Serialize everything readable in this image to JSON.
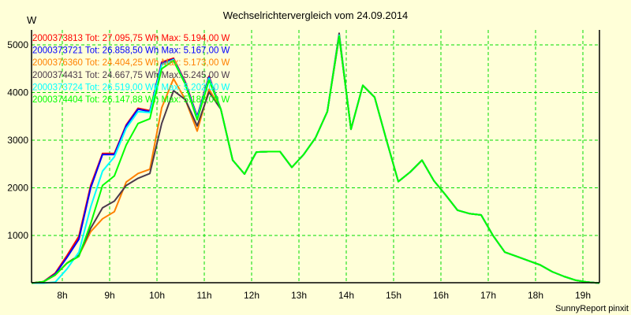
{
  "chart_data": {
    "type": "line",
    "title": "Wechselrichtervergleich vom 24.09.2014",
    "ylabel": "W",
    "xlabel": "",
    "footer": "SunnyReport pinxit",
    "xlim": [
      7.35,
      19.35
    ],
    "ylim": [
      0,
      5250
    ],
    "x_start": 7.35,
    "x_step": 0.25,
    "grid": true,
    "legend_position": "top-left",
    "x_ticks": [
      8,
      9,
      10,
      11,
      12,
      13,
      14,
      15,
      16,
      17,
      18,
      19
    ],
    "x_tick_labels": [
      "8h",
      "9h",
      "10h",
      "11h",
      "12h",
      "13h",
      "14h",
      "15h",
      "16h",
      "17h",
      "18h",
      "19h"
    ],
    "y_ticks": [
      1000,
      2000,
      3000,
      4000,
      5000
    ],
    "y_tick_labels": [
      "1000",
      "2000",
      "3000",
      "4000",
      "5000"
    ],
    "common_tail": [
      3650,
      2580,
      2290,
      2750,
      2760,
      2760,
      2430,
      2700,
      3050,
      3600,
      5200,
      3230,
      4150,
      3900,
      3000,
      2130,
      2330,
      2580,
      2150,
      1850,
      1530,
      1460,
      1430,
      1000,
      650,
      560,
      470,
      380,
      240,
      140,
      60,
      20,
      0
    ],
    "series": [
      {
        "name": "2000373813",
        "legend": "2000373813 Tot: 27.095,75 Wh Max: 5.194,00 W",
        "color": "#ff0000",
        "max": 5194,
        "head": [
          0,
          30,
          210,
          580,
          980,
          2050,
          2720,
          2720,
          3320,
          3670,
          3620,
          4640,
          4720,
          4220,
          3500,
          4340
        ]
      },
      {
        "name": "2000373721",
        "legend": "2000373721 Tot: 26.858,50 Wh Max: 5.167,00 W",
        "color": "#0000ff",
        "max": 5167,
        "head": [
          0,
          30,
          190,
          540,
          920,
          2000,
          2700,
          2700,
          3300,
          3650,
          3600,
          4620,
          4700,
          4200,
          3490,
          4320
        ]
      },
      {
        "name": "2000376360",
        "legend": "2000376360 Tot: 24.404,25 Wh Max: 5.173,00 W",
        "color": "#ff8000",
        "max": 5173,
        "head": [
          0,
          30,
          170,
          420,
          580,
          1080,
          1350,
          1500,
          2120,
          2300,
          2390,
          3680,
          4290,
          3850,
          3190,
          4070
        ]
      },
      {
        "name": "2000374431",
        "legend": "2000374431 Tot: 24.667,75 Wh Max: 5.245,00 W",
        "color": "#4b3a4b",
        "max": 5245,
        "head": [
          0,
          30,
          170,
          420,
          580,
          1150,
          1580,
          1720,
          2050,
          2200,
          2300,
          3350,
          4040,
          3850,
          3300,
          4010
        ]
      },
      {
        "name": "2000373724",
        "legend": "2000373724 Tot: 26.519,00 Wh Max: 5.202,00 W",
        "color": "#00ffff",
        "max": 5202,
        "head": [
          0,
          0,
          20,
          300,
          650,
          1600,
          2350,
          2650,
          3250,
          3600,
          3580,
          4580,
          4690,
          4180,
          3460,
          4300
        ]
      },
      {
        "name": "2000374404",
        "legend": "2000374404 Tot: 26.147,88 Wh Max: 5.183,00 W",
        "color": "#00ff00",
        "max": 5183,
        "head": [
          0,
          30,
          170,
          420,
          560,
          1250,
          2050,
          2250,
          2900,
          3350,
          3450,
          4500,
          4670,
          4170,
          3430,
          4260
        ]
      }
    ]
  }
}
